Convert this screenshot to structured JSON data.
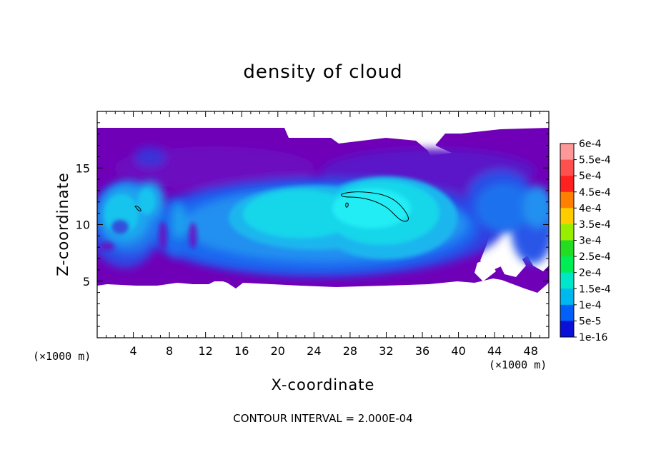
{
  "chart_data": {
    "type": "heatmap",
    "title": "density of cloud",
    "xlabel": "X-coordinate",
    "ylabel": "Z-coordinate",
    "x_unit": "(×1000 m)",
    "z_unit": "(×1000 m)",
    "x_ticks": [
      "4",
      "8",
      "12",
      "16",
      "20",
      "24",
      "28",
      "32",
      "36",
      "40",
      "44",
      "48"
    ],
    "y_ticks": [
      "5",
      "10",
      "15"
    ],
    "xlim": [
      0,
      50
    ],
    "ylim": [
      0,
      20
    ],
    "footer": "CONTOUR INTERVAL = 2.000E-04",
    "colorbar": {
      "labels": [
        "6e-4",
        "5.5e-4",
        "5e-4",
        "4.5e-4",
        "4e-4",
        "3.5e-4",
        "3e-4",
        "2.5e-4",
        "2e-4",
        "1.5e-4",
        "1e-4",
        "5e-5",
        "1e-16"
      ],
      "colors": [
        "#ff9999",
        "#ff5050",
        "#ff2020",
        "#ff8000",
        "#ffcc00",
        "#99ee00",
        "#22dd22",
        "#00ee55",
        "#00e6c8",
        "#00b8f0",
        "#0060f8",
        "#0a10d8",
        "#6a00b0"
      ]
    },
    "cloud_extent": {
      "x_range": [
        0,
        50
      ],
      "z_range": [
        4.5,
        18.5
      ],
      "color_levels": [
        "#7000b8",
        "#6c0cc0",
        "#5818d0",
        "#3040e0",
        "#1f66f0",
        "#2090f0",
        "#1ab6ee",
        "#14d6ea",
        "#22ecf4"
      ]
    },
    "max_contour_regions": [
      {
        "x": [
          29,
          34.5
        ],
        "z": [
          10.5,
          12.8
        ]
      },
      {
        "x": [
          4,
          4.8
        ],
        "z": [
          11,
          11.6
        ]
      }
    ]
  }
}
